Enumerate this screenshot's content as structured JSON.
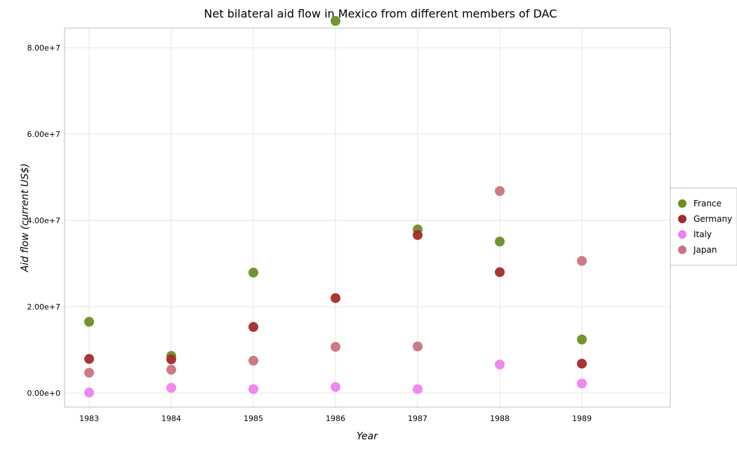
{
  "chart_data": {
    "type": "scatter",
    "title": "Net bilateral aid flow in Mexico from different members of DAC",
    "xlabel": "Year",
    "ylabel": "Aid flow (current US$)",
    "categories": [
      "1983",
      "1984",
      "1985",
      "1986",
      "1987",
      "1988",
      "1989"
    ],
    "ylim": [
      0,
      95000000
    ],
    "yticks": [
      0,
      20000000,
      40000000,
      60000000,
      80000000
    ],
    "ytick_labels": [
      "0.00e+0",
      "2.00e+7",
      "4.00e+7",
      "6.00e+7",
      "8.00e+7"
    ],
    "grid": true,
    "legend_position": "right",
    "series": [
      {
        "name": "France",
        "color": "#6b8e23",
        "values": [
          16500000,
          8600000,
          27900000,
          86200000,
          37900000,
          35100000,
          12400000
        ]
      },
      {
        "name": "Germany",
        "color": "#a52a2a",
        "values": [
          7900000,
          7800000,
          15300000,
          22000000,
          36600000,
          28000000,
          6800000
        ]
      },
      {
        "name": "Italy",
        "color": "#ee82ee",
        "values": [
          100000,
          1200000,
          900000,
          1400000,
          900000,
          6600000,
          2200000
        ]
      },
      {
        "name": "Japan",
        "color": "#c9737e",
        "values": [
          4700000,
          5400000,
          7500000,
          10700000,
          10800000,
          46800000,
          30600000
        ]
      }
    ]
  }
}
